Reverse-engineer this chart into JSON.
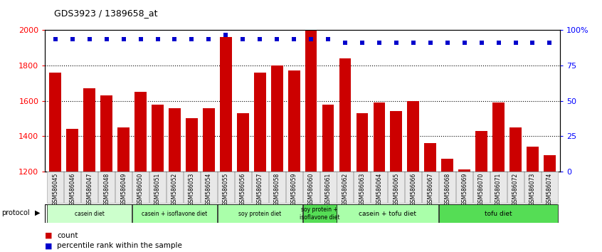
{
  "title": "GDS3923 / 1389658_at",
  "samples": [
    "GSM586045",
    "GSM586046",
    "GSM586047",
    "GSM586048",
    "GSM586049",
    "GSM586050",
    "GSM586051",
    "GSM586052",
    "GSM586053",
    "GSM586054",
    "GSM586055",
    "GSM586056",
    "GSM586057",
    "GSM586058",
    "GSM586059",
    "GSM586060",
    "GSM586061",
    "GSM586062",
    "GSM586063",
    "GSM586064",
    "GSM586065",
    "GSM586066",
    "GSM586067",
    "GSM586068",
    "GSM586069",
    "GSM586070",
    "GSM586071",
    "GSM586072",
    "GSM586073",
    "GSM586074"
  ],
  "counts": [
    1760,
    1440,
    1670,
    1630,
    1450,
    1650,
    1580,
    1560,
    1500,
    1560,
    1960,
    1530,
    1760,
    1800,
    1770,
    2000,
    1580,
    1840,
    1530,
    1590,
    1540,
    1600,
    1360,
    1270,
    1210,
    1430,
    1590,
    1450,
    1340,
    1290
  ],
  "percentile_ranks_y": [
    1950,
    1950,
    1950,
    1950,
    1950,
    1950,
    1950,
    1950,
    1950,
    1950,
    1975,
    1950,
    1950,
    1950,
    1950,
    1950,
    1950,
    1930,
    1930,
    1930,
    1930,
    1930,
    1930,
    1930,
    1930,
    1930,
    1930,
    1930,
    1930,
    1930
  ],
  "groups": [
    {
      "label": "casein diet",
      "start": 0,
      "end": 5,
      "color": "#ccffcc"
    },
    {
      "label": "casein + isoflavone diet",
      "start": 5,
      "end": 10,
      "color": "#aaffaa"
    },
    {
      "label": "soy protein diet",
      "start": 10,
      "end": 15,
      "color": "#aaffaa"
    },
    {
      "label": "soy protein +\nisoflavone diet",
      "start": 15,
      "end": 17,
      "color": "#55dd55"
    },
    {
      "label": "casein + tofu diet",
      "start": 17,
      "end": 23,
      "color": "#aaffaa"
    },
    {
      "label": "tofu diet",
      "start": 23,
      "end": 30,
      "color": "#55dd55"
    }
  ],
  "bar_color": "#cc0000",
  "dot_color": "#0000cc",
  "ylim_left": [
    1200,
    2000
  ],
  "ylim_right": [
    0,
    100
  ],
  "yticks_left": [
    1200,
    1400,
    1600,
    1800,
    2000
  ],
  "yticks_right": [
    0,
    25,
    50,
    75,
    100
  ],
  "ytick_right_labels": [
    "0",
    "25",
    "50",
    "75",
    "100%"
  ],
  "grid_values": [
    1400,
    1600,
    1800
  ],
  "bar_bottom": 1200
}
